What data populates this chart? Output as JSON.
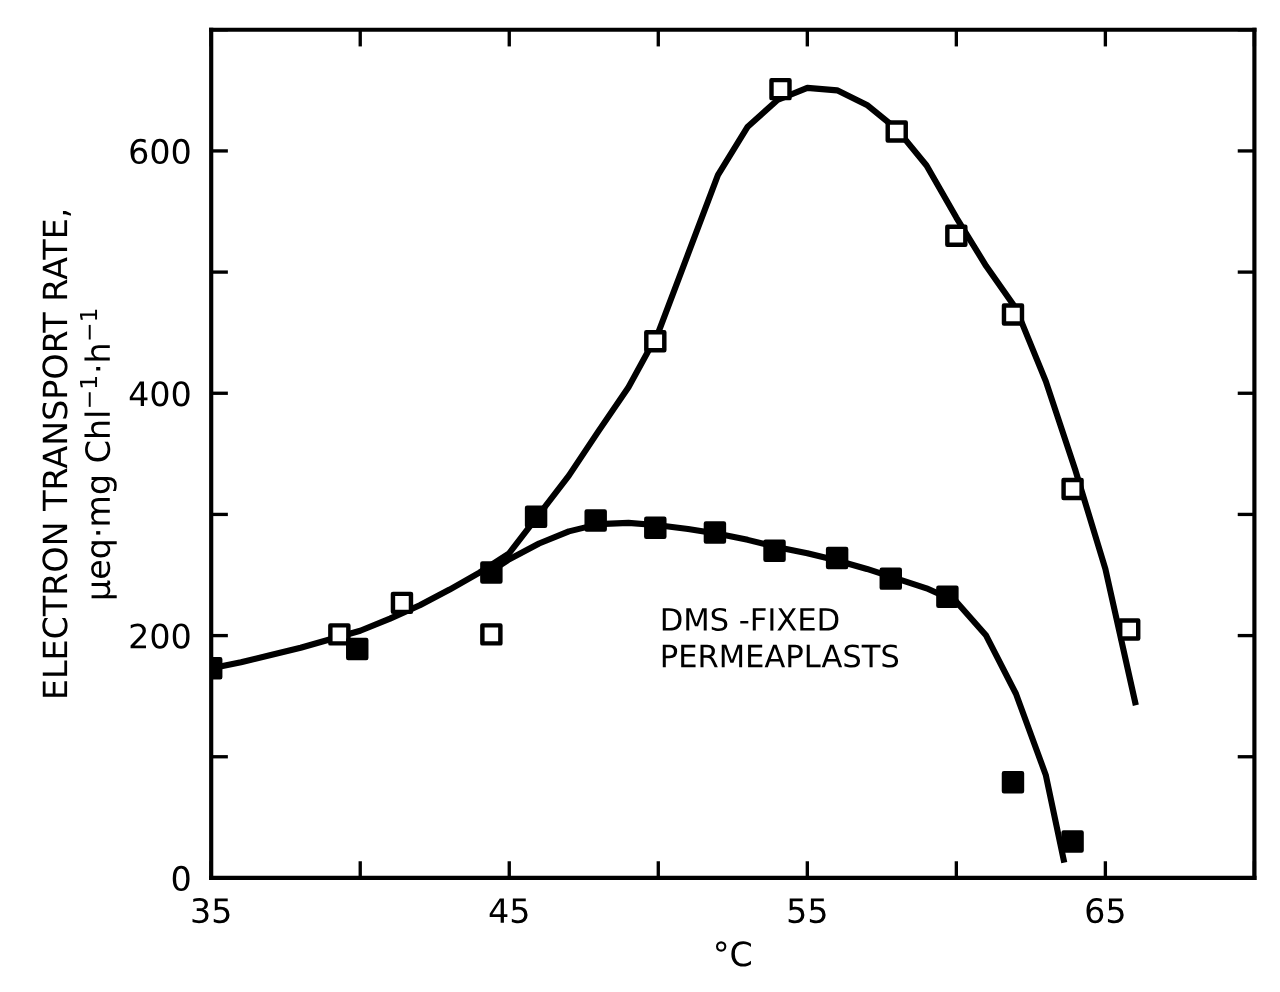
{
  "chart_data": {
    "type": "scatter",
    "xlabel": "°C",
    "ylabel": "ELECTRON TRANSPORT RATE,\nµeq·mg Chl$^{−1}$·h$^{−1}$",
    "xlim": [
      35,
      70
    ],
    "ylim": [
      0,
      700
    ],
    "xticks": [
      35,
      {
        "value": 40,
        "label": null
      },
      45,
      {
        "value": 50,
        "label": null
      },
      55,
      {
        "value": 60,
        "label": null
      },
      65,
      {
        "value": 70,
        "label": null
      }
    ],
    "yticks": [
      0,
      {
        "value": 100,
        "label": null
      },
      200,
      {
        "value": 300,
        "label": null
      },
      400,
      {
        "value": 500,
        "label": null
      },
      600,
      {
        "value": 700,
        "label": null
      }
    ],
    "grid": false,
    "legend": false,
    "series": [
      {
        "color": "#000000",
        "marker": "square",
        "x": [
          39.3,
          41.4,
          44.4,
          49.9,
          54.1,
          58.0,
          60.0,
          61.9,
          63.9,
          65.8
        ],
        "values": [
          201,
          227,
          201,
          443,
          651,
          616,
          530,
          465,
          321,
          205
        ]
      },
      {
        "name": "DMS -FIXED\nPERMEAPLASTS",
        "color": "#000000",
        "marker": "square",
        "x": [
          35,
          39.9,
          44.4,
          45.9,
          47.9,
          49.9,
          51.9,
          53.9,
          56.0,
          57.8,
          59.7,
          61.9,
          63.9
        ],
        "values": [
          173,
          189,
          252,
          298,
          295,
          289,
          285,
          270,
          264,
          247,
          232,
          79,
          30
        ]
      },
      {
        "type": "line",
        "color": "#000000",
        "marker": "none",
        "line_style": "solid",
        "x": [
          35,
          36,
          37,
          38,
          39,
          40,
          41,
          42,
          43,
          44,
          45,
          46,
          47,
          48,
          49,
          50,
          51,
          52,
          53,
          54,
          55,
          56,
          57,
          58,
          59,
          60,
          61,
          62,
          63,
          64,
          65,
          66
        ],
        "values": [
          173,
          178,
          184,
          190,
          197,
          204,
          214,
          225,
          238,
          252,
          268,
          300,
          332,
          369,
          405,
          450,
          515,
          580,
          620,
          642,
          652,
          650,
          638,
          618,
          588,
          545,
          505,
          470,
          410,
          336,
          255,
          145
        ]
      },
      {
        "type": "line",
        "color": "#000000",
        "marker": "none",
        "line_style": "solid",
        "x": [
          44.5,
          45,
          46,
          47,
          48,
          49,
          50,
          51,
          52,
          53,
          54,
          55,
          56,
          57,
          58,
          59,
          60,
          61,
          62,
          63,
          63.6
        ],
        "values": [
          255,
          263,
          276,
          286,
          292,
          293,
          291,
          288,
          284,
          279,
          273,
          268,
          262,
          255,
          247,
          239,
          228,
          200,
          152,
          85,
          15
        ]
      }
    ]
  }
}
